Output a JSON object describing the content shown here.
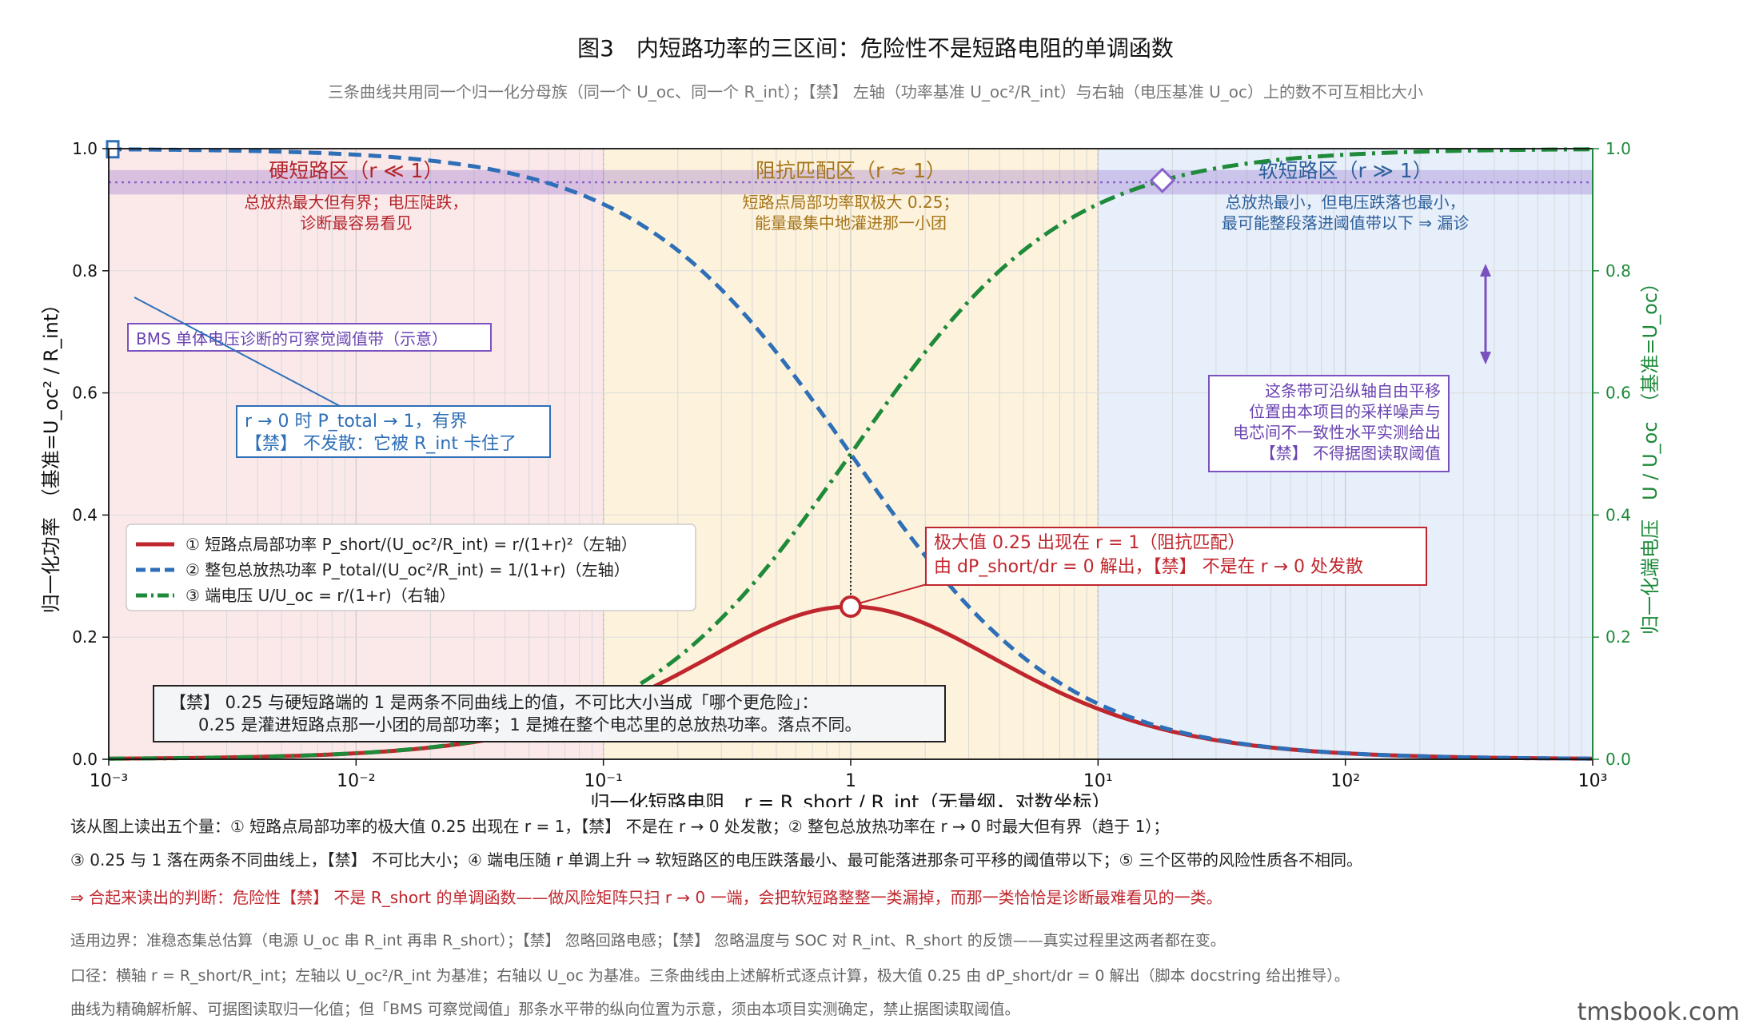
{
  "title": "图3　内短路功率的三区间：危险性不是短路电阻的单调函数",
  "subtitle": "三条曲线共用同一个归一化分母族（同一个 U_oc、同一个 R_int）；【禁】 左轴（功率基准 U_oc²/R_int）与右轴（电压基准 U_oc）上的数不可互相比大小",
  "chart_data": {
    "type": "line",
    "x_scale": "log",
    "xlim": [
      0.001,
      1000
    ],
    "ylim_left": [
      0,
      1.0
    ],
    "ylim_right": [
      0,
      1.0
    ],
    "grid": true,
    "legend_position": "center-left",
    "xlabel": "归一化短路电阻　r = R_short / R_int（无量纲，对数坐标）",
    "ylabel_left": "归一化功率　（基准=U_oc² / R_int）",
    "ylabel_right": "归一化端电压　U / U_oc　（基准=U_oc）",
    "x_ticks": [
      {
        "value": 0.001,
        "label": "10⁻³"
      },
      {
        "value": 0.01,
        "label": "10⁻²"
      },
      {
        "value": 0.1,
        "label": "10⁻¹"
      },
      {
        "value": 1,
        "label": "1"
      },
      {
        "value": 10,
        "label": "10¹"
      },
      {
        "value": 100,
        "label": "10²"
      },
      {
        "value": 1000,
        "label": "10³"
      }
    ],
    "y_ticks_left": [
      {
        "value": 0.0,
        "label": "0.0"
      },
      {
        "value": 0.2,
        "label": "0.2"
      },
      {
        "value": 0.4,
        "label": "0.4"
      },
      {
        "value": 0.6,
        "label": "0.6"
      },
      {
        "value": 0.8,
        "label": "0.8"
      },
      {
        "value": 1.0,
        "label": "1.0"
      }
    ],
    "y_ticks_right": [
      {
        "value": 0.0,
        "label": "0.0"
      },
      {
        "value": 0.2,
        "label": "0.2"
      },
      {
        "value": 0.4,
        "label": "0.4"
      },
      {
        "value": 0.6,
        "label": "0.6"
      },
      {
        "value": 0.8,
        "label": "0.8"
      },
      {
        "value": 1.0,
        "label": "1.0"
      }
    ],
    "series": [
      {
        "name": "① 短路点局部功率 P_short/(U_oc²/R_int) = r/(1+r)²（左轴）",
        "formula": "r/(1+r)^2",
        "axis": "left",
        "color": "#c0262d",
        "style": "solid",
        "x": [
          0.001,
          0.01,
          0.1,
          0.3,
          1,
          3,
          10,
          30,
          100,
          1000
        ],
        "y": [
          0.001,
          0.0098,
          0.0826,
          0.1775,
          0.25,
          0.1875,
          0.0826,
          0.0312,
          0.0098,
          0.001
        ]
      },
      {
        "name": "② 整包总放热功率 P_total/(U_oc²/R_int) = 1/(1+r)（左轴）",
        "formula": "1/(1+r)",
        "axis": "left",
        "color": "#2e6fb7",
        "style": "dashed",
        "x": [
          0.001,
          0.01,
          0.1,
          0.3,
          1,
          3,
          10,
          30,
          100,
          1000
        ],
        "y": [
          0.999,
          0.99,
          0.909,
          0.769,
          0.5,
          0.25,
          0.0909,
          0.0323,
          0.0099,
          0.001
        ]
      },
      {
        "name": "③ 端电压 U/U_oc = r/(1+r)（右轴）",
        "formula": "r/(1+r)",
        "axis": "right",
        "color": "#1e8a3a",
        "style": "dashdot",
        "x": [
          0.001,
          0.01,
          0.1,
          0.3,
          1,
          3,
          10,
          30,
          100,
          1000
        ],
        "y": [
          0.001,
          0.0099,
          0.0909,
          0.231,
          0.5,
          0.75,
          0.909,
          0.968,
          0.99,
          0.999
        ]
      }
    ],
    "regions": [
      {
        "from": 0.001,
        "to": 0.1,
        "color": "#fbe9ea",
        "title": "硬短路区（r ≪ 1）",
        "title_color": "#b3242b",
        "desc": [
          "总放热最大但有界；电压陡跌，",
          "诊断最容易看见"
        ]
      },
      {
        "from": 0.1,
        "to": 10,
        "color": "#fdf3dc",
        "title": "阻抗匹配区（r ≈ 1）",
        "title_color": "#a5741a",
        "desc": [
          "短路点局部功率取极大 0.25；",
          "能量最集中地灌进那一小团"
        ]
      },
      {
        "from": 10,
        "to": 1000,
        "color": "#e7effa",
        "title": "软短路区（r ≫ 1）",
        "title_color": "#2d5f9a",
        "desc": [
          "总放热最小，但电压跌落也最小，",
          "最可能整段落进阈值带以下 ⇒ 漏诊"
        ]
      }
    ],
    "threshold_band": {
      "center": 0.945,
      "low": 0.925,
      "high": 0.965,
      "color": "#8a63c9",
      "label": "BMS 单体电压诊断的可察觉阈值带（示意）"
    },
    "markers": {
      "peak": {
        "x": 1,
        "y": 0.25
      },
      "total_start": {
        "x": 0.001,
        "y": 0.999
      },
      "voltage_crossing": {
        "x": 18.2,
        "y": 0.948
      }
    },
    "annotations": {
      "peak_note": [
        "极大值 0.25 出现在 r = 1（阻抗匹配）",
        "由 dP_short/dr = 0 解出，【禁】 不是在 r → 0 处发散"
      ],
      "limit_note": [
        "r → 0 时 P_total → 1，有界",
        "【禁】 不发散：它被 R_int 卡住了"
      ],
      "band_note": [
        "这条带可沿纵轴自由平移",
        "位置由本项目的采样噪声与",
        "电芯间不一致性水平实测给出",
        "【禁】 不得据图读取阈值"
      ],
      "compare_note": [
        "【禁】 0.25 与硬短路端的 1 是两条不同曲线上的值，不可比大小当成「哪个更危险」：",
        "0.25 是灌进短路点那一小团的局部功率；1 是摊在整个电芯里的总放热功率。落点不同。"
      ]
    }
  },
  "footer": {
    "line1": "该从图上读出五个量：① 短路点局部功率的极大值 0.25 出现在 r = 1，【禁】 不是在 r → 0 处发散；② 整包总放热功率在 r → 0 时最大但有界（趋于 1）；",
    "line2": "③ 0.25 与 1 落在两条不同曲线上，【禁】 不可比大小；④ 端电压随 r 单调上升 ⇒ 软短路区的电压跌落最小、最可能落进那条可平移的阈值带以下；⑤ 三个区带的风险性质各不相同。",
    "line3": "⇒ 合起来读出的判断：危险性【禁】 不是 R_short 的单调函数——做风险矩阵只扫 r → 0 一端，会把软短路整整一类漏掉，而那一类恰恰是诊断最难看见的一类。",
    "line4": "适用边界：准稳态集总估算（电源 U_oc 串 R_int 再串 R_short）；【禁】 忽略回路电感；【禁】 忽略温度与 SOC 对 R_int、R_short 的反馈——真实过程里这两者都在变。",
    "line5": "口径：横轴 r = R_short/R_int；左轴以 U_oc²/R_int 为基准；右轴以 U_oc 为基准。三条曲线由上述解析式逐点计算，极大值 0.25 由 dP_short/dr = 0 解出（脚本 docstring 给出推导）。",
    "line6": "曲线为精确解析解、可据图读取归一化值；但「BMS 可察觉阈值」那条水平带的纵向位置为示意，须由本项目实测确定，禁止据图读取阈值。"
  },
  "watermark": "tmsbook.com"
}
